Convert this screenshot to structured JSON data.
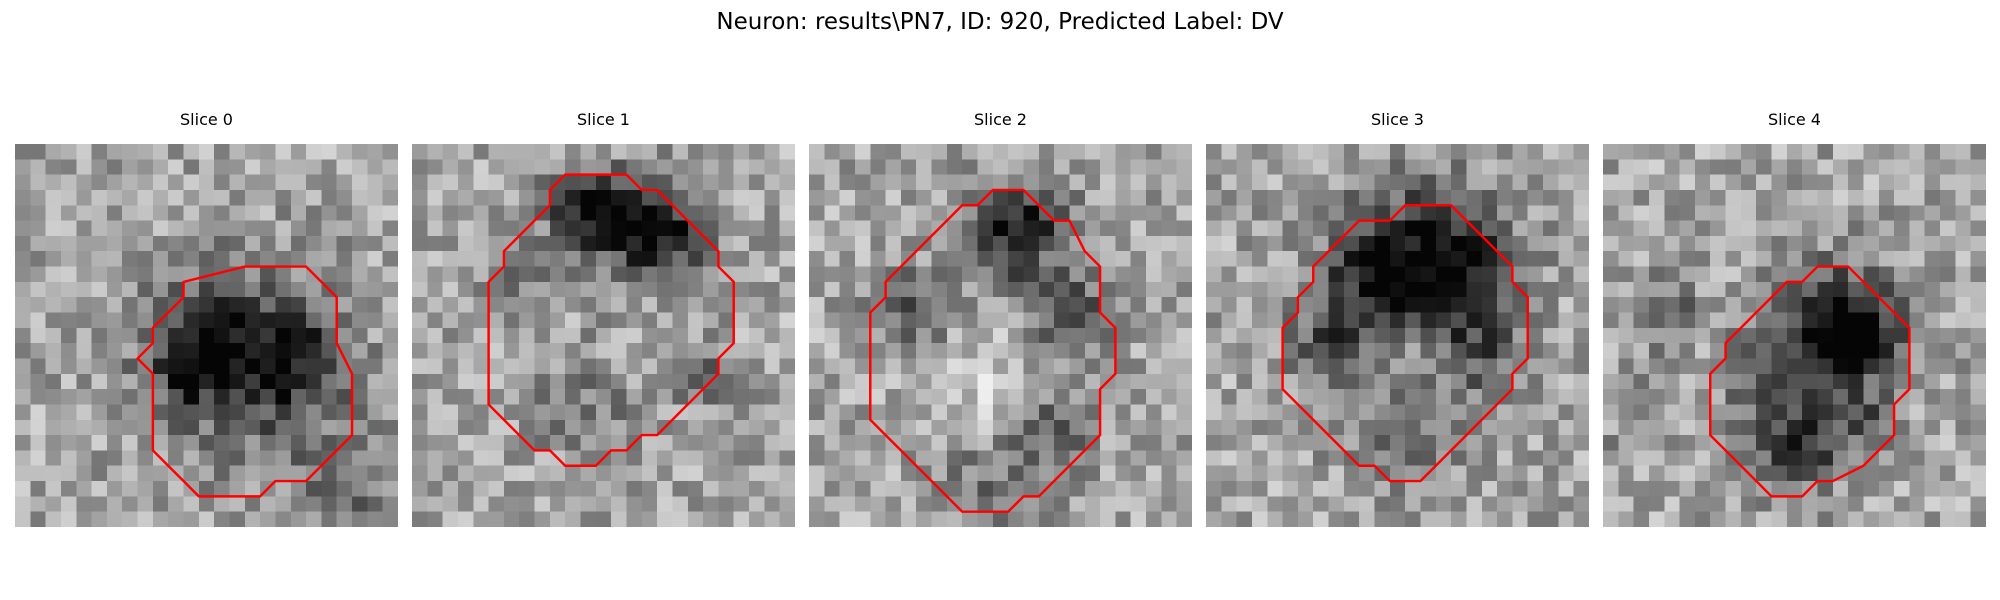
{
  "figure": {
    "title": "Neuron: results\\PN7, ID: 920, Predicted Label: DV"
  },
  "contour_color": "#ff0000",
  "panels": [
    {
      "title": "Slice 0",
      "contour": [
        [
          7,
          2
        ],
        [
          11,
          2
        ],
        [
          13,
          4
        ],
        [
          13,
          7
        ],
        [
          14,
          9
        ],
        [
          14,
          13
        ],
        [
          12,
          15
        ],
        [
          11,
          16
        ],
        [
          9,
          16
        ],
        [
          8,
          17
        ],
        [
          4,
          17
        ],
        [
          3,
          16
        ],
        [
          2,
          15
        ],
        [
          1,
          14
        ],
        [
          1,
          9
        ],
        [
          0,
          8
        ],
        [
          1,
          7
        ],
        [
          1,
          6
        ],
        [
          3,
          4
        ],
        [
          3,
          3
        ]
      ],
      "dark_blobs": [
        [
          7,
          8,
          4.2,
          1.0
        ],
        [
          4,
          7,
          2.0,
          0.6
        ],
        [
          10,
          8,
          2.2,
          0.7
        ],
        [
          14,
          17,
          3.0,
          0.5
        ],
        [
          3,
          9,
          1.5,
          0.5
        ]
      ]
    },
    {
      "title": "Slice 1",
      "contour": [
        [
          8,
          0
        ],
        [
          9,
          0
        ],
        [
          10,
          1
        ],
        [
          11,
          1
        ],
        [
          12,
          2
        ],
        [
          13,
          3
        ],
        [
          14,
          4
        ],
        [
          15,
          5
        ],
        [
          15,
          6
        ],
        [
          16,
          7
        ],
        [
          16,
          11
        ],
        [
          15,
          12
        ],
        [
          15,
          13
        ],
        [
          14,
          14
        ],
        [
          12,
          16
        ],
        [
          11,
          17
        ],
        [
          10,
          17
        ],
        [
          9,
          18
        ],
        [
          8,
          18
        ],
        [
          7,
          19
        ],
        [
          5,
          19
        ],
        [
          4,
          18
        ],
        [
          3,
          18
        ],
        [
          2,
          17
        ],
        [
          1,
          16
        ],
        [
          0,
          15
        ],
        [
          0,
          7
        ],
        [
          1,
          6
        ],
        [
          1,
          5
        ],
        [
          2,
          4
        ],
        [
          4,
          2
        ],
        [
          4,
          1
        ],
        [
          5,
          0
        ]
      ],
      "dark_blobs": [
        [
          8,
          3,
          2.2,
          1.1
        ],
        [
          6,
          2,
          1.5,
          0.8
        ],
        [
          11,
          3,
          2.0,
          0.8
        ],
        [
          12,
          5,
          2.0,
          0.5
        ],
        [
          2,
          6,
          1.5,
          0.5
        ],
        [
          14,
          13,
          1.5,
          0.5
        ],
        [
          6,
          15,
          2.5,
          0.4
        ]
      ]
    },
    {
      "title": "Slice 2",
      "contour": [
        [
          8,
          0
        ],
        [
          10,
          0
        ],
        [
          12,
          2
        ],
        [
          13,
          2
        ],
        [
          14,
          4
        ],
        [
          15,
          5
        ],
        [
          15,
          8
        ],
        [
          16,
          9
        ],
        [
          16,
          12
        ],
        [
          15,
          13
        ],
        [
          15,
          16
        ],
        [
          14,
          17
        ],
        [
          13,
          18
        ],
        [
          12,
          19
        ],
        [
          11,
          20
        ],
        [
          10,
          20
        ],
        [
          9,
          21
        ],
        [
          6,
          21
        ],
        [
          5,
          20
        ],
        [
          4,
          19
        ],
        [
          3,
          18
        ],
        [
          2,
          17
        ],
        [
          1,
          16
        ],
        [
          0,
          15
        ],
        [
          0,
          8
        ],
        [
          1,
          7
        ],
        [
          1,
          6
        ],
        [
          2,
          5
        ],
        [
          3,
          4
        ],
        [
          4,
          3
        ],
        [
          5,
          2
        ],
        [
          6,
          1
        ],
        [
          7,
          1
        ]
      ],
      "dark_blobs": [
        [
          10,
          2,
          2.0,
          1.1
        ],
        [
          9,
          4,
          1.5,
          0.6
        ],
        [
          13,
          8,
          2.0,
          0.8
        ],
        [
          3,
          8,
          2.0,
          0.7
        ],
        [
          12,
          15,
          2.0,
          0.6
        ],
        [
          7,
          13,
          3.0,
          -0.4
        ],
        [
          8,
          19,
          2.5,
          0.5
        ]
      ]
    },
    {
      "title": "Slice 3",
      "contour": [
        [
          8,
          0
        ],
        [
          11,
          0
        ],
        [
          12,
          1
        ],
        [
          13,
          2
        ],
        [
          14,
          3
        ],
        [
          15,
          4
        ],
        [
          15,
          5
        ],
        [
          16,
          6
        ],
        [
          16,
          10
        ],
        [
          15,
          11
        ],
        [
          15,
          12
        ],
        [
          14,
          13
        ],
        [
          13,
          14
        ],
        [
          12,
          15
        ],
        [
          11,
          16
        ],
        [
          10,
          17
        ],
        [
          9,
          18
        ],
        [
          7,
          18
        ],
        [
          6,
          17
        ],
        [
          5,
          17
        ],
        [
          4,
          16
        ],
        [
          3,
          15
        ],
        [
          2,
          14
        ],
        [
          1,
          13
        ],
        [
          0,
          12
        ],
        [
          0,
          8
        ],
        [
          1,
          7
        ],
        [
          1,
          6
        ],
        [
          2,
          5
        ],
        [
          2,
          4
        ],
        [
          3,
          3
        ],
        [
          4,
          2
        ],
        [
          5,
          1
        ],
        [
          7,
          1
        ]
      ],
      "dark_blobs": [
        [
          9,
          3,
          3.5,
          1.0
        ],
        [
          12,
          5,
          2.5,
          0.9
        ],
        [
          6,
          5,
          2.5,
          0.8
        ],
        [
          3,
          9,
          2.0,
          0.7
        ],
        [
          13,
          10,
          2.0,
          0.6
        ],
        [
          8,
          14,
          3.0,
          0.5
        ],
        [
          8,
          10,
          2.5,
          -0.3
        ]
      ]
    },
    {
      "title": "Slice 4",
      "contour": [
        [
          7,
          0
        ],
        [
          9,
          0
        ],
        [
          10,
          1
        ],
        [
          12,
          3
        ],
        [
          13,
          4
        ],
        [
          13,
          8
        ],
        [
          12,
          9
        ],
        [
          12,
          11
        ],
        [
          11,
          12
        ],
        [
          10,
          13
        ],
        [
          8,
          14
        ],
        [
          7,
          14
        ],
        [
          6,
          15
        ],
        [
          4,
          15
        ],
        [
          3,
          14
        ],
        [
          1,
          12
        ],
        [
          0,
          11
        ],
        [
          0,
          7
        ],
        [
          1,
          6
        ],
        [
          1,
          5
        ],
        [
          2,
          4
        ],
        [
          3,
          3
        ],
        [
          4,
          2
        ],
        [
          5,
          1
        ],
        [
          6,
          1
        ]
      ],
      "dark_blobs": [
        [
          8,
          4,
          3.0,
          1.0
        ],
        [
          10,
          4,
          2.0,
          0.8
        ],
        [
          6,
          12,
          2.0,
          0.9
        ],
        [
          4,
          8,
          2.0,
          0.7
        ],
        [
          10,
          10,
          1.5,
          0.6
        ],
        [
          -3,
          3,
          1.5,
          0.7
        ],
        [
          -5,
          8,
          1.2,
          0.5
        ],
        [
          2,
          20,
          1.0,
          0.5
        ],
        [
          -8,
          12,
          1.2,
          0.4
        ]
      ]
    }
  ]
}
